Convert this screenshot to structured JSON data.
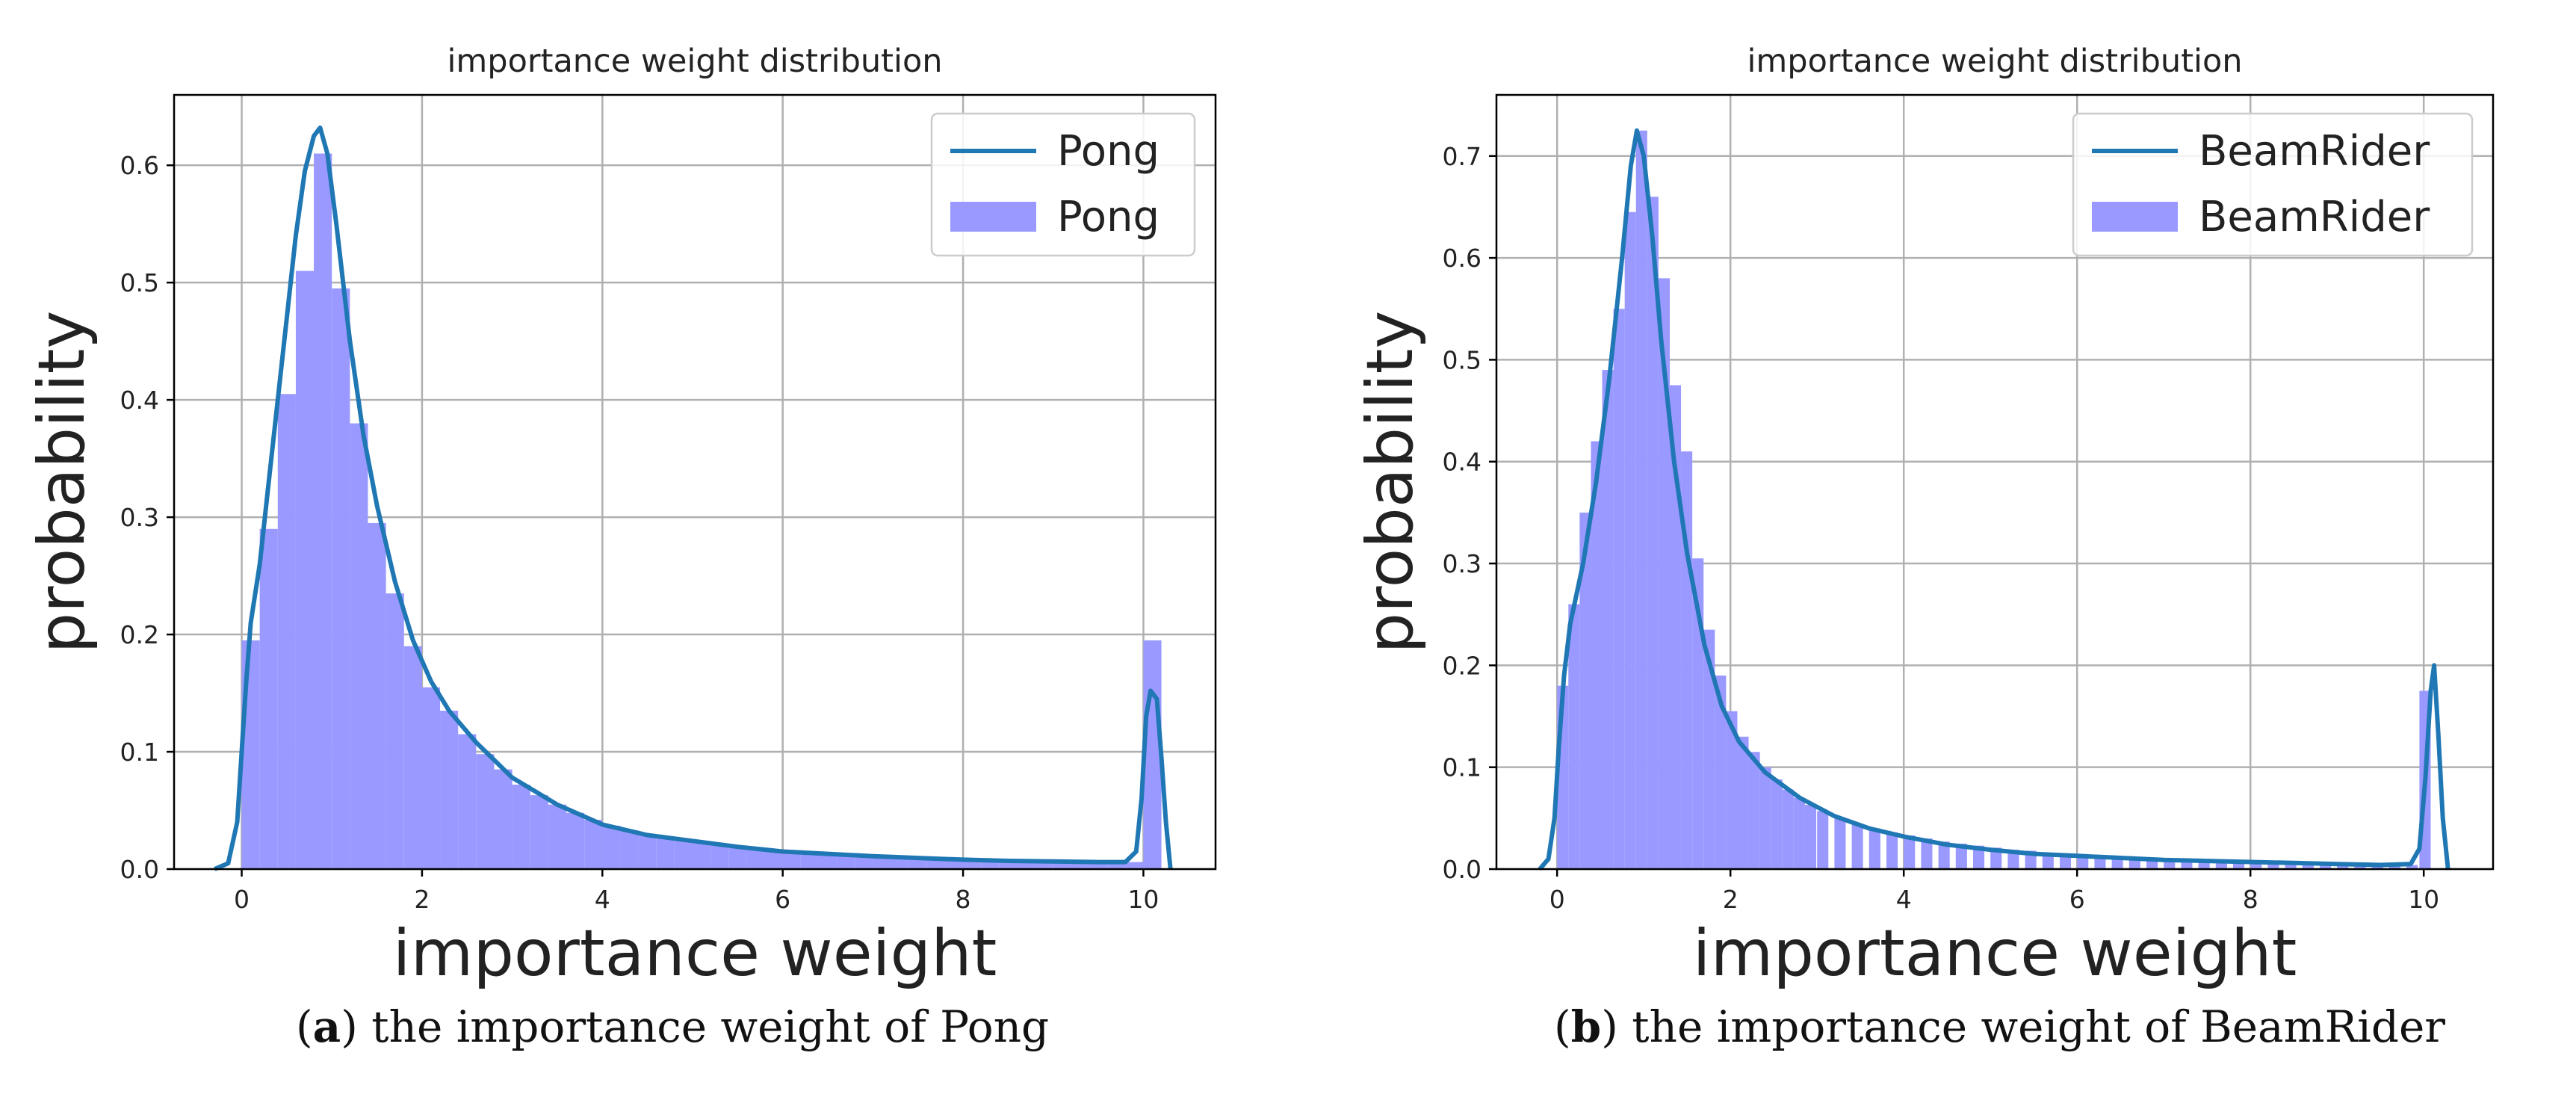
{
  "colors": {
    "line": "#1f77b4",
    "hist": "#9999ff",
    "grid": "#b0b0b0",
    "axis": "#000000"
  },
  "captions": [
    {
      "letter": "a",
      "text": " the importance weight of Pong"
    },
    {
      "letter": "b",
      "text": " the importance weight of BeamRider"
    }
  ],
  "chart_data": [
    {
      "type": "histogram+line",
      "title": "importance weight distribution",
      "xlabel": "importance weight",
      "ylabel": "probability",
      "xlim": [
        -0.75,
        10.8
      ],
      "ylim": [
        0,
        0.66
      ],
      "xticks": [
        0,
        2,
        4,
        6,
        8,
        10
      ],
      "yticks": [
        0.0,
        0.1,
        0.2,
        0.3,
        0.4,
        0.5,
        0.6
      ],
      "xtick_labels": [
        "0",
        "2",
        "4",
        "6",
        "8",
        "10"
      ],
      "ytick_labels": [
        "0.0",
        "0.1",
        "0.2",
        "0.3",
        "0.4",
        "0.5",
        "0.6"
      ],
      "grid": true,
      "legend": {
        "placement": "top-right",
        "entries": [
          {
            "name": "Pong",
            "kind": "line"
          },
          {
            "name": "Pong",
            "kind": "patch"
          }
        ]
      },
      "histogram": {
        "bin_width": 0.2,
        "bins": [
          [
            0.0,
            0.195
          ],
          [
            0.2,
            0.29
          ],
          [
            0.4,
            0.405
          ],
          [
            0.6,
            0.51
          ],
          [
            0.8,
            0.61
          ],
          [
            1.0,
            0.495
          ],
          [
            1.2,
            0.38
          ],
          [
            1.4,
            0.295
          ],
          [
            1.6,
            0.235
          ],
          [
            1.8,
            0.19
          ],
          [
            2.0,
            0.155
          ],
          [
            2.2,
            0.135
          ],
          [
            2.4,
            0.115
          ],
          [
            2.6,
            0.098
          ],
          [
            2.8,
            0.085
          ],
          [
            3.0,
            0.072
          ],
          [
            3.2,
            0.063
          ],
          [
            3.4,
            0.055
          ],
          [
            3.6,
            0.048
          ],
          [
            3.8,
            0.042
          ],
          [
            4.0,
            0.037
          ],
          [
            4.2,
            0.033
          ],
          [
            4.4,
            0.029
          ],
          [
            4.6,
            0.026
          ],
          [
            4.8,
            0.024
          ],
          [
            5.0,
            0.022
          ],
          [
            5.2,
            0.02
          ],
          [
            5.4,
            0.018
          ],
          [
            5.6,
            0.017
          ],
          [
            5.8,
            0.016
          ],
          [
            6.0,
            0.015
          ],
          [
            6.2,
            0.014
          ],
          [
            6.4,
            0.013
          ],
          [
            6.6,
            0.012
          ],
          [
            6.8,
            0.011
          ],
          [
            7.0,
            0.011
          ],
          [
            7.2,
            0.01
          ],
          [
            7.4,
            0.01
          ],
          [
            7.6,
            0.009
          ],
          [
            7.8,
            0.009
          ],
          [
            8.0,
            0.008
          ],
          [
            8.2,
            0.008
          ],
          [
            8.4,
            0.007
          ],
          [
            8.6,
            0.007
          ],
          [
            8.8,
            0.007
          ],
          [
            9.0,
            0.006
          ],
          [
            9.2,
            0.006
          ],
          [
            9.4,
            0.006
          ],
          [
            9.6,
            0.006
          ],
          [
            9.8,
            0.006
          ],
          [
            10.0,
            0.195
          ]
        ]
      },
      "kde": [
        [
          -0.3,
          0.0
        ],
        [
          -0.15,
          0.005
        ],
        [
          -0.05,
          0.04
        ],
        [
          0.0,
          0.1
        ],
        [
          0.05,
          0.16
        ],
        [
          0.1,
          0.21
        ],
        [
          0.2,
          0.26
        ],
        [
          0.3,
          0.33
        ],
        [
          0.4,
          0.4
        ],
        [
          0.5,
          0.47
        ],
        [
          0.6,
          0.54
        ],
        [
          0.7,
          0.595
        ],
        [
          0.8,
          0.625
        ],
        [
          0.87,
          0.632
        ],
        [
          0.95,
          0.61
        ],
        [
          1.05,
          0.55
        ],
        [
          1.2,
          0.45
        ],
        [
          1.35,
          0.37
        ],
        [
          1.5,
          0.31
        ],
        [
          1.7,
          0.245
        ],
        [
          1.9,
          0.195
        ],
        [
          2.1,
          0.16
        ],
        [
          2.3,
          0.135
        ],
        [
          2.6,
          0.108
        ],
        [
          3.0,
          0.078
        ],
        [
          3.5,
          0.055
        ],
        [
          4.0,
          0.038
        ],
        [
          4.5,
          0.029
        ],
        [
          5.0,
          0.024
        ],
        [
          5.5,
          0.019
        ],
        [
          6.0,
          0.015
        ],
        [
          6.5,
          0.013
        ],
        [
          7.0,
          0.011
        ],
        [
          7.5,
          0.0095
        ],
        [
          8.0,
          0.008
        ],
        [
          8.5,
          0.007
        ],
        [
          9.0,
          0.0065
        ],
        [
          9.5,
          0.006
        ],
        [
          9.8,
          0.006
        ],
        [
          9.92,
          0.015
        ],
        [
          9.98,
          0.06
        ],
        [
          10.03,
          0.13
        ],
        [
          10.08,
          0.152
        ],
        [
          10.15,
          0.145
        ],
        [
          10.2,
          0.095
        ],
        [
          10.25,
          0.04
        ],
        [
          10.3,
          0.0
        ]
      ]
    },
    {
      "type": "histogram+line",
      "title": "importance weight distribution",
      "xlabel": "importance weight",
      "ylabel": "probability",
      "xlim": [
        -0.7,
        10.8
      ],
      "ylim": [
        0,
        0.76
      ],
      "xticks": [
        0,
        2,
        4,
        6,
        8,
        10
      ],
      "yticks": [
        0.0,
        0.1,
        0.2,
        0.3,
        0.4,
        0.5,
        0.6,
        0.7
      ],
      "xtick_labels": [
        "0",
        "2",
        "4",
        "6",
        "8",
        "10"
      ],
      "ytick_labels": [
        "0.0",
        "0.1",
        "0.2",
        "0.3",
        "0.4",
        "0.5",
        "0.6",
        "0.7"
      ],
      "grid": true,
      "legend": {
        "placement": "top-right",
        "entries": [
          {
            "name": "BeamRider",
            "kind": "line"
          },
          {
            "name": "BeamRider",
            "kind": "patch"
          }
        ]
      },
      "histogram": {
        "bin_width": 0.13,
        "bins": [
          [
            0.0,
            0.18
          ],
          [
            0.13,
            0.26
          ],
          [
            0.26,
            0.35
          ],
          [
            0.39,
            0.42
          ],
          [
            0.52,
            0.49
          ],
          [
            0.65,
            0.55
          ],
          [
            0.78,
            0.645
          ],
          [
            0.91,
            0.725
          ],
          [
            1.04,
            0.66
          ],
          [
            1.17,
            0.58
          ],
          [
            1.3,
            0.475
          ],
          [
            1.43,
            0.41
          ],
          [
            1.56,
            0.305
          ],
          [
            1.69,
            0.235
          ],
          [
            1.82,
            0.19
          ],
          [
            1.95,
            0.155
          ],
          [
            2.08,
            0.13
          ],
          [
            2.21,
            0.115
          ],
          [
            2.34,
            0.1
          ],
          [
            2.47,
            0.088
          ],
          [
            2.6,
            0.078
          ],
          [
            2.73,
            0.07
          ],
          [
            2.86,
            0.063
          ],
          [
            3.0,
            0.057
          ],
          [
            3.2,
            0.05
          ],
          [
            3.4,
            0.044
          ],
          [
            3.6,
            0.04
          ],
          [
            3.8,
            0.036
          ],
          [
            4.0,
            0.033
          ],
          [
            4.2,
            0.03
          ],
          [
            4.4,
            0.027
          ],
          [
            4.6,
            0.025
          ],
          [
            4.8,
            0.023
          ],
          [
            5.0,
            0.021
          ],
          [
            5.2,
            0.019
          ],
          [
            5.4,
            0.018
          ],
          [
            5.6,
            0.016
          ],
          [
            5.8,
            0.015
          ],
          [
            6.0,
            0.014
          ],
          [
            6.2,
            0.013
          ],
          [
            6.4,
            0.012
          ],
          [
            6.6,
            0.011
          ],
          [
            6.8,
            0.011
          ],
          [
            7.0,
            0.01
          ],
          [
            7.2,
            0.009
          ],
          [
            7.4,
            0.009
          ],
          [
            7.6,
            0.008
          ],
          [
            7.8,
            0.008
          ],
          [
            8.0,
            0.007
          ],
          [
            8.2,
            0.007
          ],
          [
            8.4,
            0.006
          ],
          [
            8.6,
            0.006
          ],
          [
            8.8,
            0.005
          ],
          [
            9.0,
            0.005
          ],
          [
            9.2,
            0.005
          ],
          [
            9.4,
            0.005
          ],
          [
            9.6,
            0.004
          ],
          [
            9.8,
            0.004
          ],
          [
            9.95,
            0.175
          ]
        ]
      },
      "kde": [
        [
          -0.2,
          0.0
        ],
        [
          -0.1,
          0.01
        ],
        [
          -0.03,
          0.05
        ],
        [
          0.02,
          0.12
        ],
        [
          0.08,
          0.19
        ],
        [
          0.15,
          0.24
        ],
        [
          0.3,
          0.3
        ],
        [
          0.45,
          0.38
        ],
        [
          0.6,
          0.48
        ],
        [
          0.75,
          0.6
        ],
        [
          0.85,
          0.69
        ],
        [
          0.92,
          0.725
        ],
        [
          1.0,
          0.7
        ],
        [
          1.1,
          0.62
        ],
        [
          1.2,
          0.52
        ],
        [
          1.35,
          0.4
        ],
        [
          1.5,
          0.31
        ],
        [
          1.7,
          0.22
        ],
        [
          1.9,
          0.16
        ],
        [
          2.1,
          0.125
        ],
        [
          2.4,
          0.095
        ],
        [
          2.8,
          0.07
        ],
        [
          3.2,
          0.052
        ],
        [
          3.6,
          0.04
        ],
        [
          4.0,
          0.032
        ],
        [
          4.5,
          0.024
        ],
        [
          5.0,
          0.019
        ],
        [
          5.5,
          0.015
        ],
        [
          6.0,
          0.013
        ],
        [
          6.5,
          0.011
        ],
        [
          7.0,
          0.009
        ],
        [
          7.5,
          0.008
        ],
        [
          8.0,
          0.007
        ],
        [
          8.5,
          0.006
        ],
        [
          9.0,
          0.005
        ],
        [
          9.5,
          0.004
        ],
        [
          9.85,
          0.005
        ],
        [
          9.95,
          0.02
        ],
        [
          10.02,
          0.09
        ],
        [
          10.08,
          0.175
        ],
        [
          10.12,
          0.2
        ],
        [
          10.17,
          0.13
        ],
        [
          10.22,
          0.05
        ],
        [
          10.28,
          0.0
        ]
      ]
    }
  ]
}
